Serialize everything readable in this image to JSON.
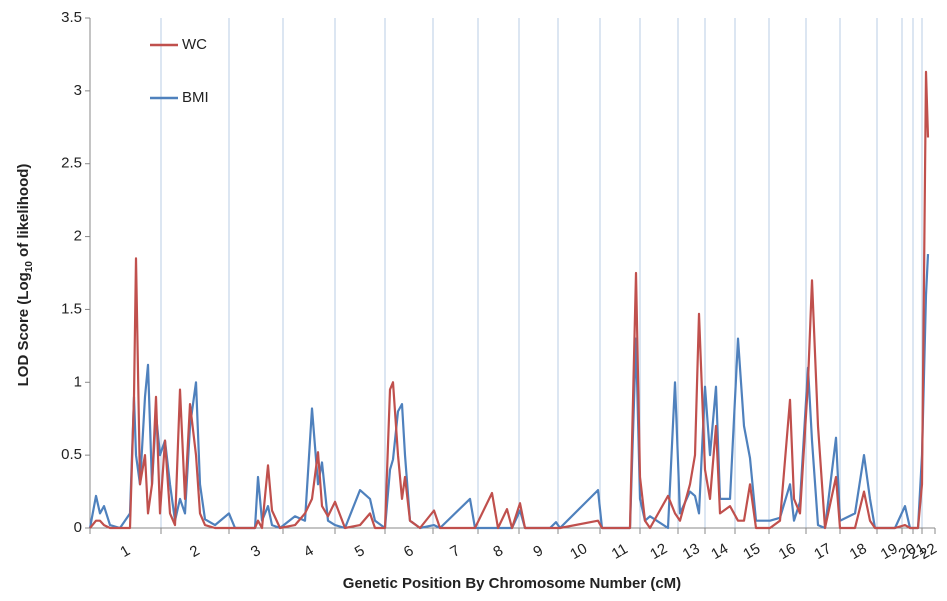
{
  "chart_data": {
    "type": "line",
    "ylabel": [
      "LOD Score (Log",
      "10",
      " of likelihood)"
    ],
    "xlabel": "Genetic Position By Chromosome Number (cM)",
    "categories": [
      "1",
      "2",
      "3",
      "4",
      "5",
      "6",
      "7",
      "8",
      "9",
      "10",
      "11",
      "12",
      "13",
      "14",
      "15",
      "16",
      "17",
      "18",
      "19",
      "20",
      "21",
      "22"
    ],
    "chromosome_bounds": [
      0,
      284,
      556,
      772,
      980,
      1180,
      1372,
      1552,
      1716,
      1872,
      2040,
      2200,
      2352,
      2460,
      2580,
      2716,
      2864,
      3000,
      3148,
      3248,
      3292,
      3328,
      3380
    ],
    "xlim": [
      0,
      3380
    ],
    "ylim": [
      0,
      3.5
    ],
    "yticks": [
      0,
      0.5,
      1,
      1.5,
      2,
      2.5,
      3,
      3.5
    ],
    "legend": "top-left",
    "x": [
      0,
      24,
      40,
      56,
      80,
      120,
      160,
      176,
      184,
      200,
      220,
      232,
      248,
      264,
      280,
      300,
      320,
      340,
      360,
      380,
      400,
      424,
      440,
      460,
      500,
      556,
      580,
      660,
      672,
      688,
      712,
      728,
      760,
      820,
      860,
      888,
      912,
      928,
      952,
      980,
      1020,
      1080,
      1120,
      1140,
      1180,
      1200,
      1212,
      1232,
      1248,
      1260,
      1280,
      1320,
      1376,
      1400,
      1520,
      1540,
      1608,
      1632,
      1668,
      1688,
      1720,
      1740,
      1840,
      1864,
      1880,
      2032,
      2048,
      2160,
      2184,
      2200,
      2220,
      2240,
      2312,
      2340,
      2360,
      2400,
      2420,
      2436,
      2460,
      2480,
      2504,
      2520,
      2560,
      2592,
      2616,
      2640,
      2664,
      2720,
      2760,
      2800,
      2816,
      2840,
      2872,
      2888,
      2912,
      2940,
      2984,
      3000,
      3060,
      3096,
      3120,
      3140,
      3220,
      3260,
      3280,
      3312,
      3328,
      3344,
      3352
    ],
    "series": [
      {
        "name": "WC",
        "color": "#c0504d",
        "values": [
          0,
          0.05,
          0.05,
          0.02,
          0,
          0,
          0,
          0.9,
          1.85,
          0.3,
          0.5,
          0.1,
          0.3,
          0.9,
          0.1,
          0.6,
          0.1,
          0.02,
          0.95,
          0.2,
          0.85,
          0.5,
          0.1,
          0.02,
          0,
          0,
          0,
          0,
          0.05,
          0,
          0.43,
          0.12,
          0,
          0.02,
          0.1,
          0.2,
          0.52,
          0.15,
          0.08,
          0.18,
          0,
          0.02,
          0.1,
          0,
          0,
          0.95,
          1.0,
          0.5,
          0.2,
          0.35,
          0.05,
          0,
          0.12,
          0,
          0,
          0,
          0.24,
          0,
          0.13,
          0,
          0.17,
          0,
          0,
          0,
          0,
          0.05,
          0,
          0,
          1.75,
          0.35,
          0.05,
          0,
          0.22,
          0.1,
          0.05,
          0.3,
          0.5,
          1.47,
          0.4,
          0.2,
          0.7,
          0.1,
          0.15,
          0.05,
          0.05,
          0.3,
          0,
          0,
          0.05,
          0.88,
          0.2,
          0.1,
          1.0,
          1.7,
          0.7,
          0,
          0.35,
          0,
          0,
          0.25,
          0.05,
          0,
          0,
          0.02,
          0,
          0,
          0.3,
          3.13,
          2.68
        ]
      },
      {
        "name": "BMI",
        "color": "#4f81bd",
        "values": [
          0,
          0.22,
          0.1,
          0.15,
          0.02,
          0,
          0.1,
          0.9,
          0.5,
          0.3,
          0.9,
          1.12,
          0.3,
          0.78,
          0.5,
          0.6,
          0.3,
          0.05,
          0.2,
          0.1,
          0.7,
          1.0,
          0.3,
          0.06,
          0.02,
          0.1,
          0,
          0,
          0.35,
          0.05,
          0.15,
          0.02,
          0,
          0.08,
          0.05,
          0.82,
          0.3,
          0.45,
          0.05,
          0.02,
          0,
          0.26,
          0.2,
          0.05,
          0,
          0.4,
          0.47,
          0.8,
          0.85,
          0.5,
          0.05,
          0,
          0.02,
          0,
          0.2,
          0,
          0,
          0,
          0,
          0,
          0.12,
          0,
          0,
          0.04,
          0,
          0.26,
          0,
          0,
          1.3,
          0.2,
          0.05,
          0.08,
          0,
          1.0,
          0.1,
          0.25,
          0.22,
          0.1,
          0.97,
          0.5,
          0.97,
          0.2,
          0.2,
          1.3,
          0.7,
          0.48,
          0.05,
          0.05,
          0.07,
          0.3,
          0.05,
          0.18,
          1.1,
          0.6,
          0.02,
          0,
          0.62,
          0.05,
          0.1,
          0.5,
          0.2,
          0,
          0,
          0.15,
          0,
          0,
          0.5,
          1.6,
          1.88
        ]
      }
    ]
  }
}
